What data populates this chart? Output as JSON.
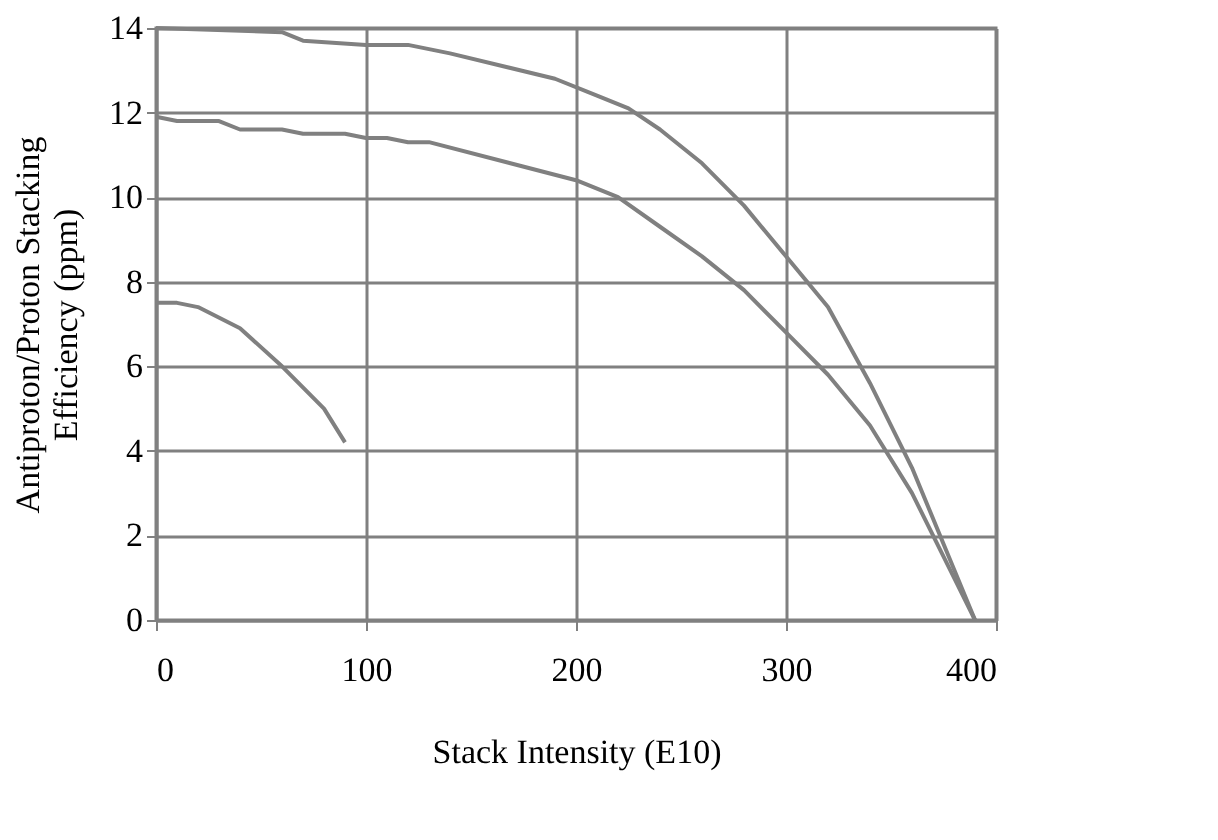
{
  "chart_data": {
    "type": "line",
    "xlabel": "Stack Intensity (E10)",
    "ylabel": "Antiproton/Proton Stacking\nEfficiency (ppm)",
    "xlim": [
      0,
      400
    ],
    "xticks": [
      0,
      100,
      200,
      300,
      400
    ],
    "ylim": [
      0,
      14
    ],
    "yticks": [
      0,
      2,
      4,
      6,
      8,
      10,
      12,
      14
    ],
    "grid": true,
    "legend": false,
    "marker": "none",
    "line_style": "solid",
    "series": [
      {
        "color": "#808080",
        "x": [
          0,
          60,
          70,
          100,
          120,
          140,
          190,
          210,
          225,
          240,
          260,
          280,
          300,
          320,
          340,
          360,
          380,
          390
        ],
        "values": [
          14,
          13.9,
          13.7,
          13.6,
          13.6,
          13.4,
          12.8,
          12.4,
          12.1,
          11.6,
          10.8,
          9.8,
          8.6,
          7.4,
          5.6,
          3.6,
          1.2,
          0
        ]
      },
      {
        "color": "#808080",
        "x": [
          0,
          10,
          30,
          40,
          60,
          70,
          90,
          100,
          110,
          120,
          130,
          200,
          220,
          240,
          260,
          280,
          300,
          320,
          340,
          360,
          380,
          390
        ],
        "values": [
          11.9,
          11.8,
          11.8,
          11.6,
          11.6,
          11.5,
          11.5,
          11.4,
          11.4,
          11.3,
          11.3,
          10.4,
          10.0,
          9.3,
          8.6,
          7.8,
          6.8,
          5.8,
          4.6,
          3.0,
          1.0,
          0
        ]
      },
      {
        "color": "#808080",
        "x": [
          0,
          10,
          20,
          40,
          60,
          80,
          90
        ],
        "values": [
          7.5,
          7.5,
          7.4,
          6.9,
          6.0,
          5.0,
          4.2
        ]
      }
    ]
  }
}
